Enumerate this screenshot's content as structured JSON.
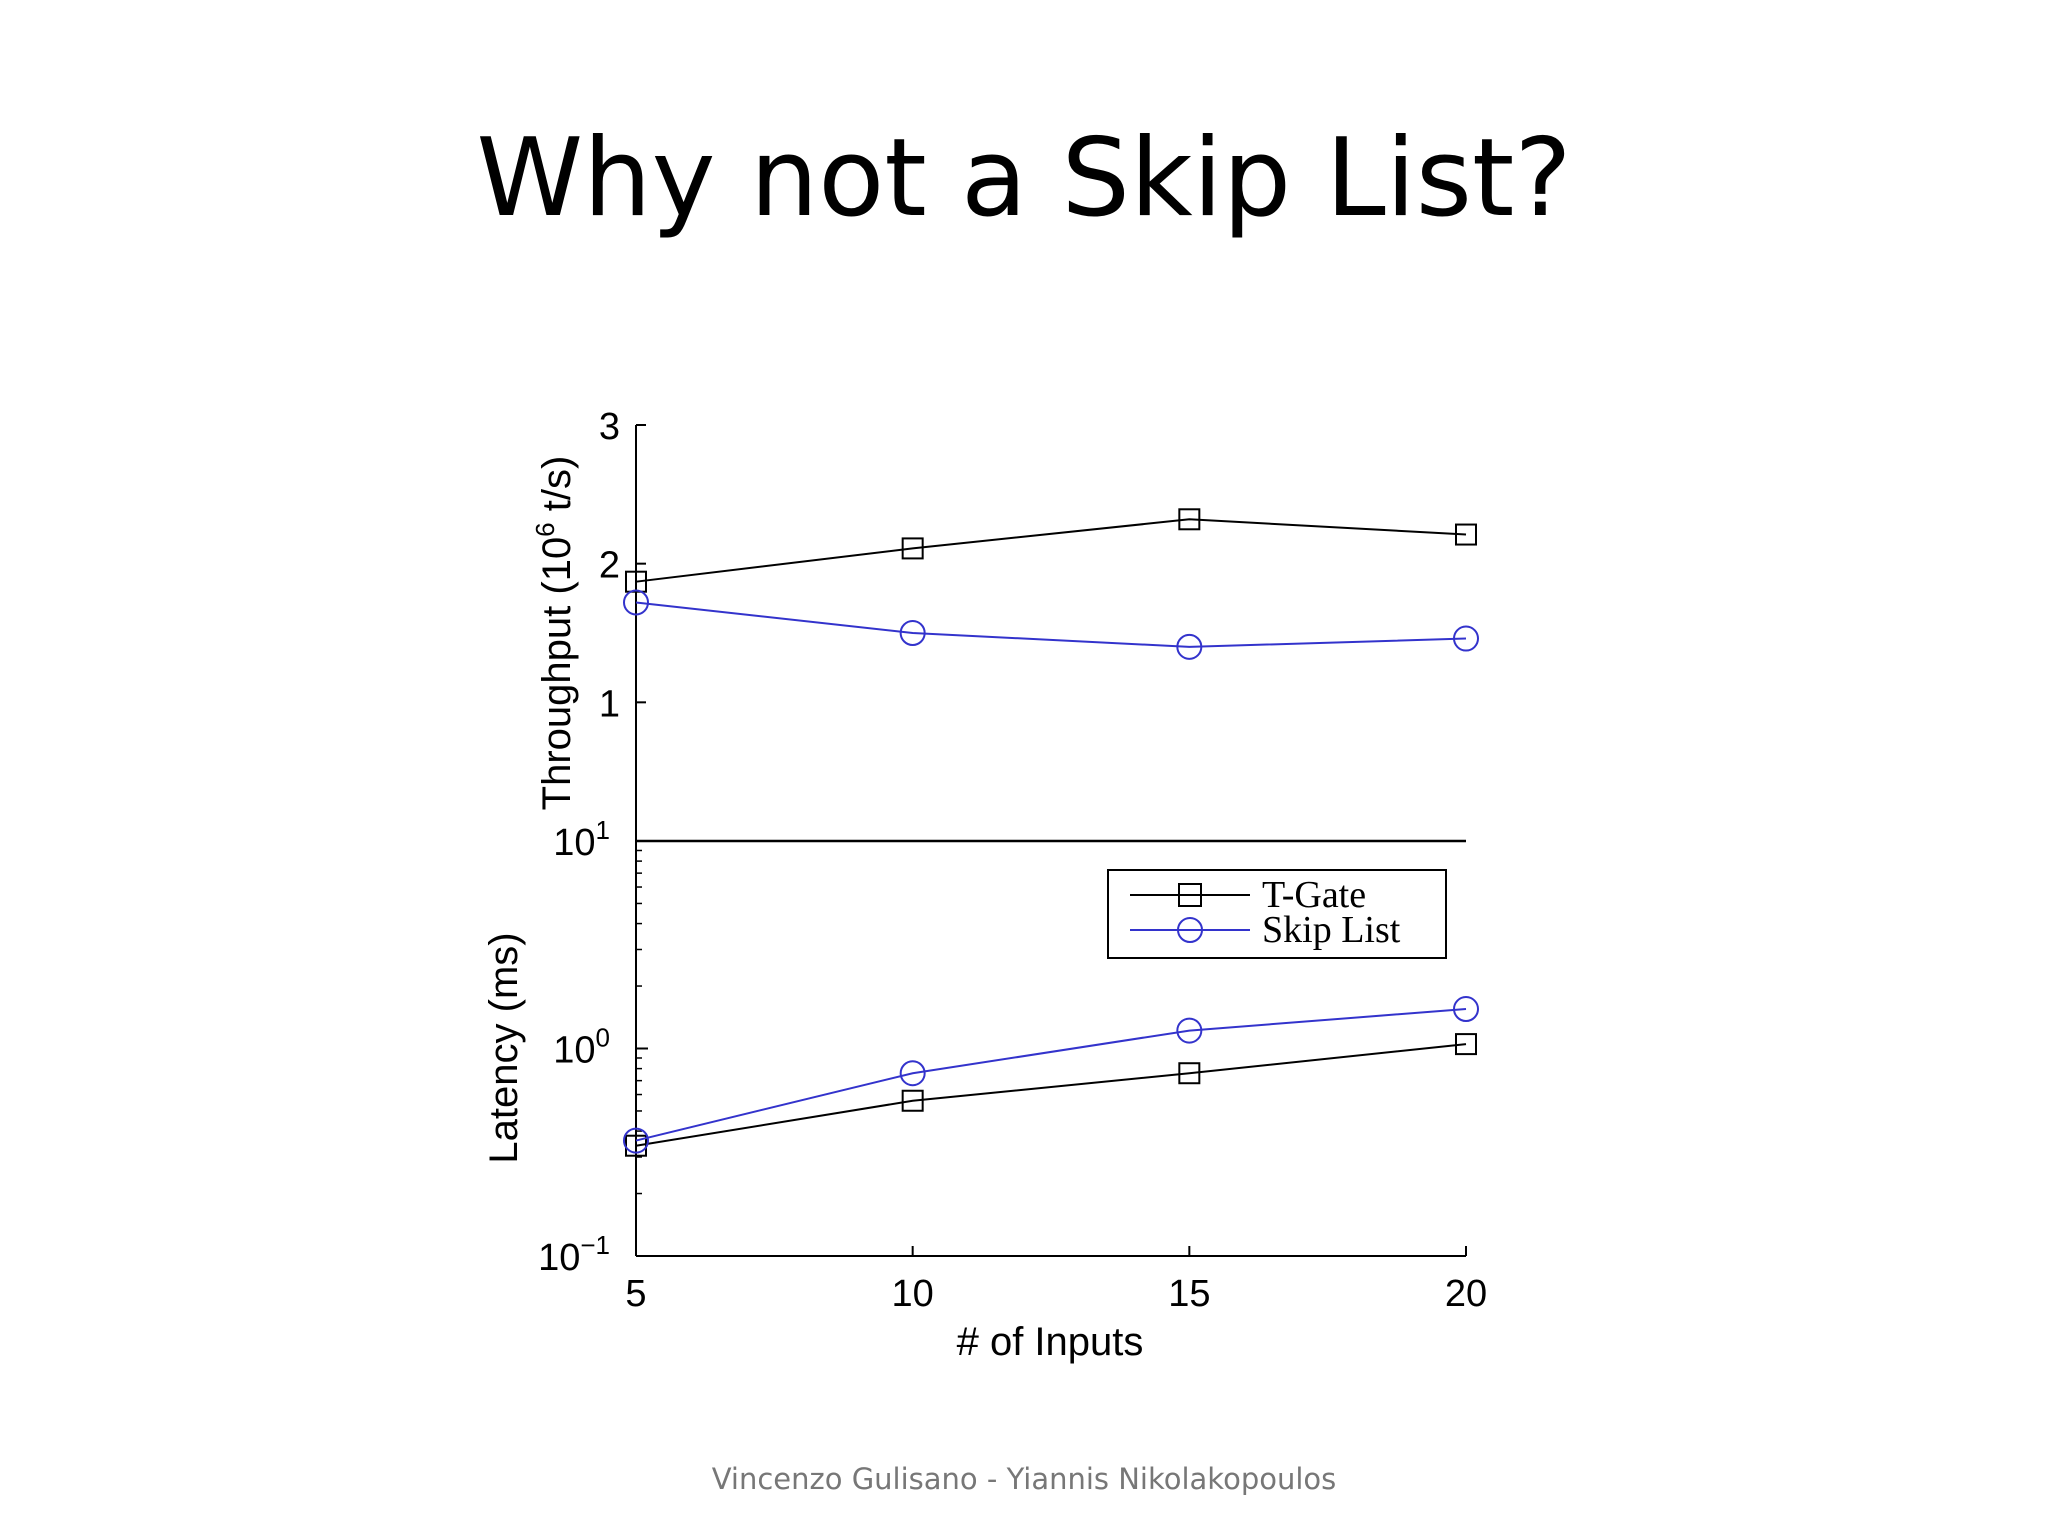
{
  "slide": {
    "title": "Why not a Skip List?",
    "footer": "Vincenzo Gulisano - Yiannis Nikolakopoulos"
  },
  "chart_data": [
    {
      "type": "line",
      "panel": "top",
      "ylabel": "Throughput (10",
      "ylabel_sup": "6",
      "ylabel_tail": " t/s)",
      "ylim": [
        0,
        3
      ],
      "yticks": [
        "1",
        "2",
        "3"
      ],
      "yticks_values": [
        1,
        2,
        3
      ],
      "x": [
        5,
        10,
        15,
        20
      ],
      "series": [
        {
          "name": "T-Gate",
          "marker": "square",
          "color": "#000000",
          "values": [
            1.87,
            2.11,
            2.32,
            2.21
          ]
        },
        {
          "name": "Skip List",
          "marker": "circle",
          "color": "#3333cc",
          "values": [
            1.72,
            1.5,
            1.4,
            1.46
          ]
        }
      ]
    },
    {
      "type": "line",
      "panel": "bottom",
      "yscale": "log",
      "xlabel": "# of Inputs",
      "ylabel": "Latency (ms)",
      "ylim": [
        0.1,
        10
      ],
      "yticks": [
        {
          "base": "10",
          "exp": "−1",
          "value": 0.1
        },
        {
          "base": "10",
          "exp": "0",
          "value": 1
        },
        {
          "base": "10",
          "exp": "1",
          "value": 10
        }
      ],
      "x": [
        5,
        10,
        15,
        20
      ],
      "xticks": [
        "5",
        "10",
        "15",
        "20"
      ],
      "legend": {
        "position": "top-right",
        "entries": [
          "T-Gate",
          "Skip List"
        ]
      },
      "series": [
        {
          "name": "T-Gate",
          "marker": "square",
          "color": "#000000",
          "values": [
            0.34,
            0.56,
            0.76,
            1.05
          ]
        },
        {
          "name": "Skip List",
          "marker": "circle",
          "color": "#3333cc",
          "values": [
            0.36,
            0.76,
            1.22,
            1.55
          ]
        }
      ]
    }
  ]
}
